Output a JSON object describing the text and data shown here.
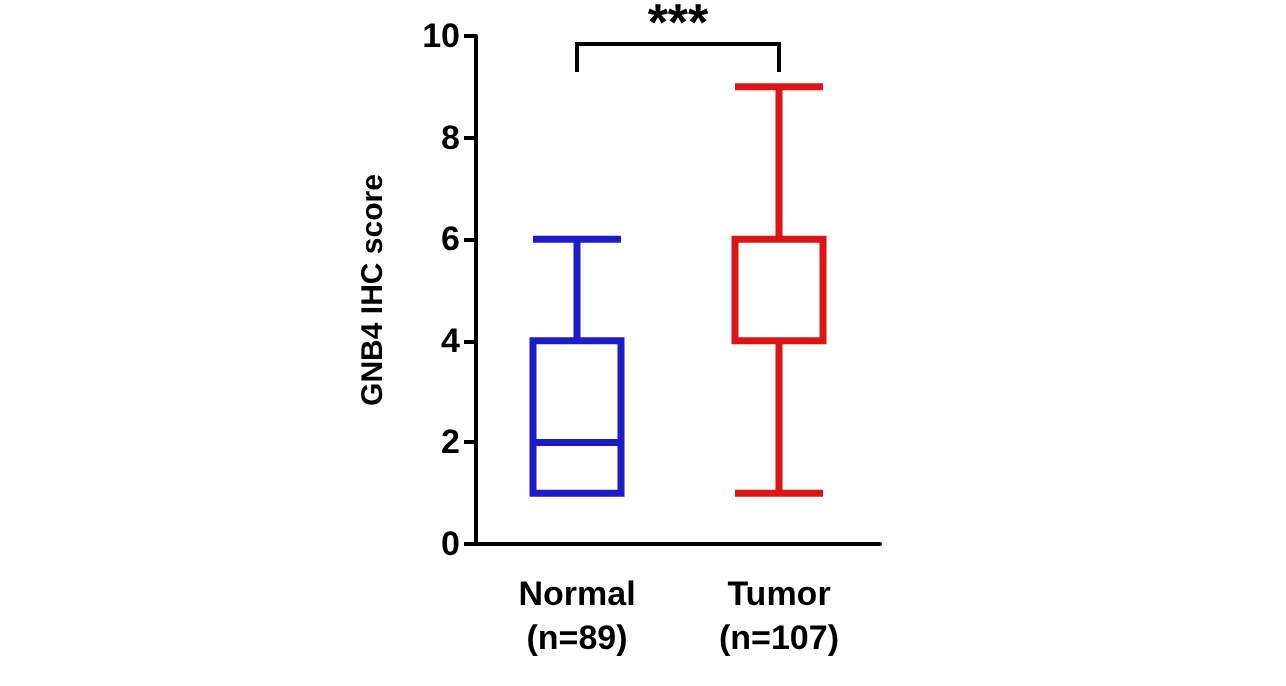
{
  "chart_data": {
    "type": "box",
    "ylabel": "GNB4 IHC score",
    "categories": [
      "Normal\n(n=89)",
      "Tumor\n(n=107)"
    ],
    "boxes": [
      {
        "low": 1,
        "q1": 1,
        "median": 2,
        "q3": 4,
        "high": 6
      },
      {
        "low": 1,
        "q1": 4,
        "median": 4,
        "q3": 6,
        "high": 9
      }
    ],
    "colors": [
      "#1c1cc8",
      "#dc1414"
    ],
    "ylim": [
      0,
      10
    ],
    "yticks": [
      0,
      2,
      4,
      6,
      8,
      10
    ],
    "annotations": [
      "***"
    ]
  }
}
